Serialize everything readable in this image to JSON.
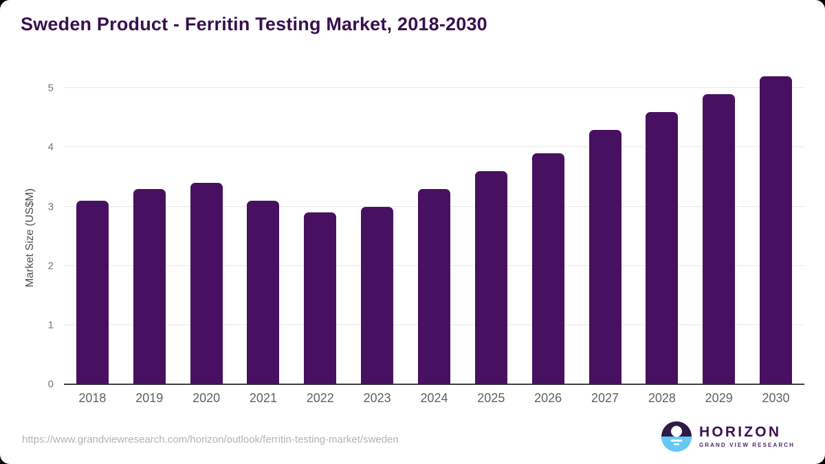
{
  "header": {
    "title": "Sweden Product - Ferritin Testing Market, 2018-2030"
  },
  "chart_data": {
    "type": "bar",
    "title": "Sweden Product - Ferritin Testing Market, 2018-2030",
    "categories": [
      "2018",
      "2019",
      "2020",
      "2021",
      "2022",
      "2023",
      "2024",
      "2025",
      "2026",
      "2027",
      "2028",
      "2029",
      "2030"
    ],
    "values": [
      3.1,
      3.3,
      3.4,
      3.1,
      2.9,
      3.0,
      3.3,
      3.6,
      3.9,
      4.3,
      4.6,
      4.9,
      5.2
    ],
    "xlabel": "",
    "ylabel": "Market Size (US$M)",
    "ylim": [
      0,
      5.34
    ],
    "yticks": [
      0,
      1,
      2,
      3,
      4,
      5
    ],
    "grid": true,
    "legend": false,
    "bar_color": "#471061"
  },
  "footer": {
    "source_url": "https://www.grandviewresearch.com/horizon/outlook/ferritin-testing-market/sweden",
    "logo": {
      "name": "HORIZON",
      "subtitle": "GRAND VIEW RESEARCH"
    }
  },
  "colors": {
    "page_background": "#000000",
    "card_background": "#ffffff",
    "title_text": "#38104f",
    "bar": "#471061",
    "axis_line": "#3d3d3d",
    "gridline": "#e9e9e9",
    "tick_text": "#757575",
    "url_text": "#b3b3b3",
    "logo_purple": "#2e1a47",
    "logo_blue": "#63c8f2"
  }
}
